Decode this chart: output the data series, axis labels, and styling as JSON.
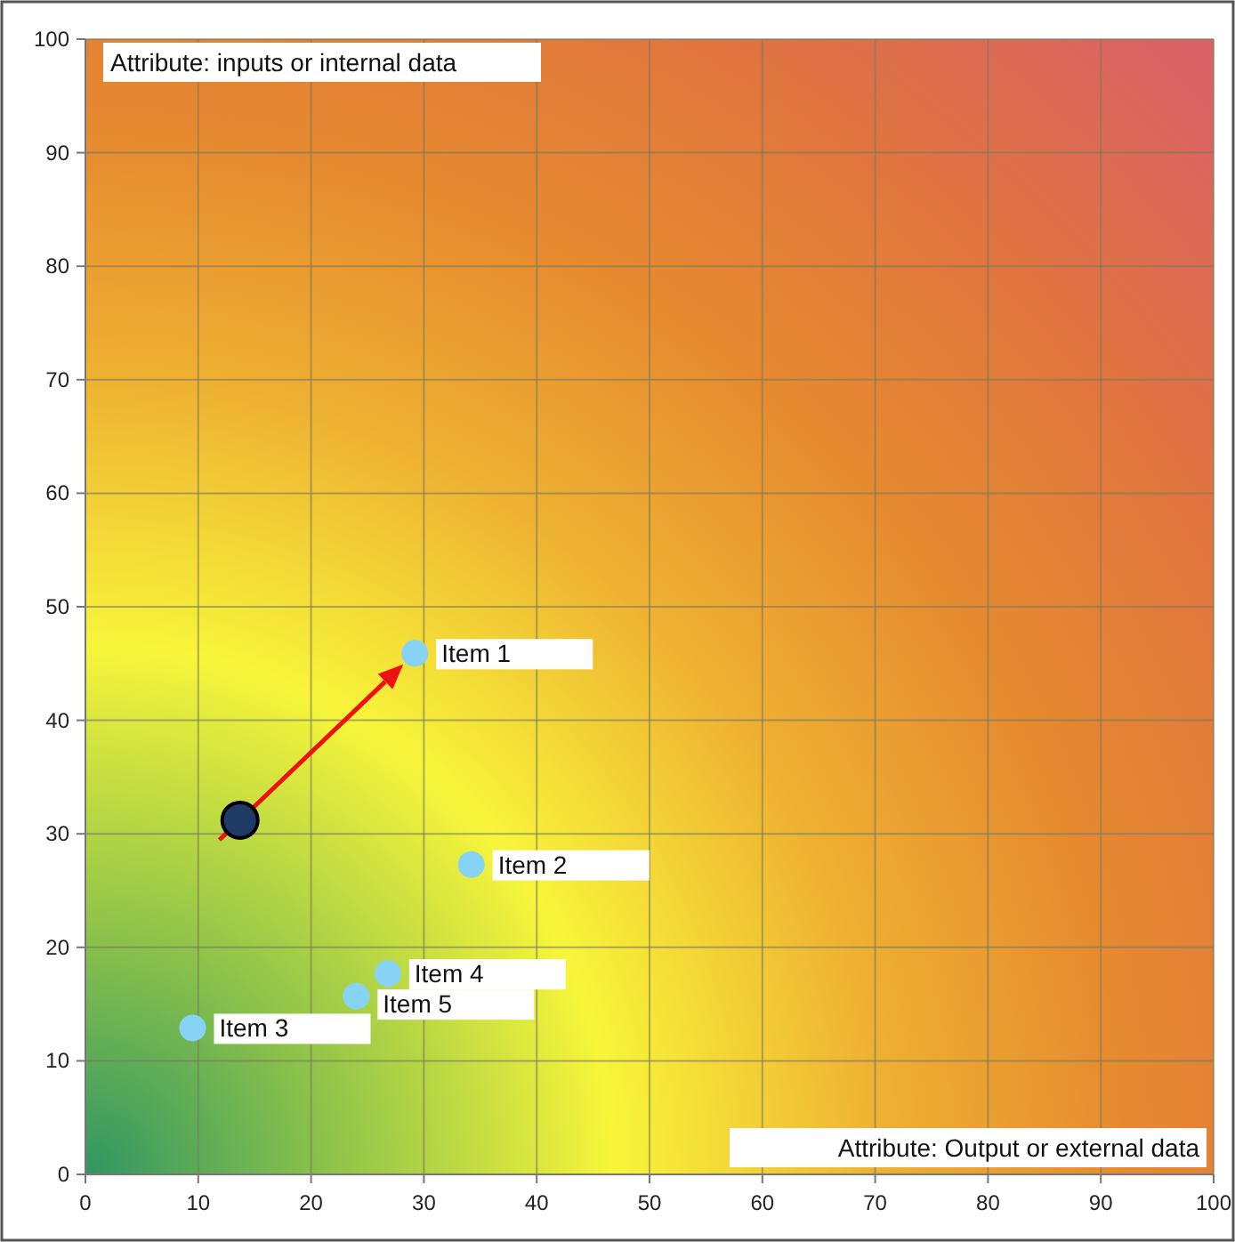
{
  "chart_data": {
    "type": "scatter",
    "xlabel": "Attribute: Output or external data",
    "ylabel": "Attribute: inputs or internal data",
    "xlim": [
      0,
      100
    ],
    "ylim": [
      0,
      100
    ],
    "xticks": [
      0,
      10,
      20,
      30,
      40,
      50,
      60,
      70,
      80,
      90,
      100
    ],
    "yticks": [
      0,
      10,
      20,
      30,
      40,
      50,
      60,
      70,
      80,
      90,
      100
    ],
    "grid": true,
    "marker": "circle",
    "series": [
      {
        "color": "#87d3f5",
        "x": [
          29.2,
          34.2,
          9.5,
          26.8,
          24.0
        ],
        "values": [
          45.9,
          27.3,
          12.9,
          17.7,
          15.7
        ]
      },
      {
        "color": "#1f3a64",
        "x": [
          13.7
        ],
        "values": [
          31.2
        ]
      }
    ],
    "annotations": [
      {
        "text": "Item 1",
        "x": 29.2,
        "y": 45.9
      },
      {
        "text": "Item 2",
        "x": 34.2,
        "y": 27.3
      },
      {
        "text": "Item 3",
        "x": 9.5,
        "y": 12.9
      },
      {
        "text": "Item 4",
        "x": 26.8,
        "y": 17.7
      },
      {
        "text": "Item 5",
        "x": 24.0,
        "y": 15.7
      }
    ]
  }
}
